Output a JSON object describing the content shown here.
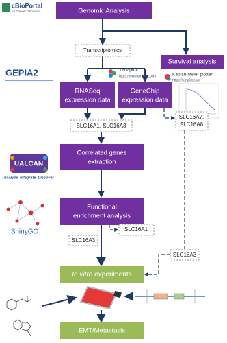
{
  "logos": {
    "cbioportal": {
      "name": "cBioPortal",
      "tagline": "for Cancer Genomics"
    },
    "gepia": {
      "name": "GEPIA2"
    },
    "tnmplot": {
      "name": "TNMplot",
      "url": "https://www.tnmplot.com"
    },
    "kmplotter": {
      "name": "Kaplan-Meier plotter",
      "url": "https://kmplot.com"
    },
    "ualcan": {
      "name": "UALCAN",
      "tagline": "Analyze, Integrate, Discover"
    },
    "shinygo": {
      "name": "ShinyGO"
    }
  },
  "nodes": {
    "genomic": "Genomic Analysis",
    "transcriptomics": "Transcriptomics",
    "survival": "Survival analysis",
    "rnaseq": [
      "RNASeq",
      "expression data"
    ],
    "genechip": [
      "GeneChip",
      "expression data"
    ],
    "genes_a": "SLC16A1, SLC16A3",
    "genes_b": [
      "SLC16A7,",
      "SLC16A8"
    ],
    "correlated": [
      "Correlated genes",
      "extraction"
    ],
    "functional": [
      "Functional",
      "enrichment analysis"
    ],
    "genes_c": "SLC16A1",
    "genes_d": "SLC16A3",
    "invitro": {
      "italic": "In vitro",
      "rest": "experiments"
    },
    "genes_e": "SLC16A3",
    "emt": "EMT/Metastasis"
  }
}
